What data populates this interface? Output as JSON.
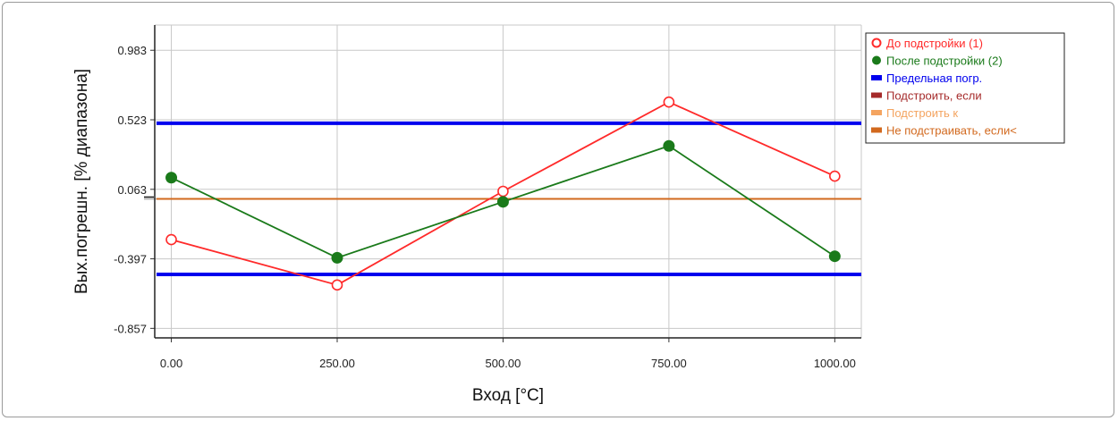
{
  "chart_data": {
    "type": "line",
    "xlabel": "Вход [°C]",
    "ylabel": "Вых.погрешн. [% диапазона]",
    "x": [
      0,
      250,
      500,
      750,
      1000
    ],
    "x_tick_labels": [
      "0.00",
      "250.00",
      "500.00",
      "750.00",
      "1000.00"
    ],
    "y_ticks": [
      0.983,
      0.523,
      0.063,
      -0.397,
      -0.857
    ],
    "y_tick_labels": [
      "0.983",
      "0.523",
      "0.063",
      "-0.397",
      "-0.857"
    ],
    "xlim": [
      -25,
      1040
    ],
    "ylim": [
      -0.92,
      1.15
    ],
    "grid": true,
    "legend_position": "right",
    "series": [
      {
        "name": "До подстройки (1)",
        "color": "#ff2a2a",
        "marker": "open-circle",
        "values": [
          -0.27,
          -0.57,
          0.05,
          0.64,
          0.15
        ]
      },
      {
        "name": "После подстройки (2)",
        "color": "#1a7a1a",
        "marker": "filled-circle",
        "values": [
          0.14,
          -0.39,
          -0.02,
          0.35,
          -0.38
        ]
      }
    ],
    "hlines": [
      {
        "name": "Предельная погр.",
        "color": "#0000ee",
        "values": [
          0.5,
          -0.5
        ],
        "width": 4
      },
      {
        "name": "Подстроить, если",
        "color": "#a52a2a",
        "values": [],
        "width": 3
      },
      {
        "name": "Подстроить к",
        "color": "#f4a460",
        "values": [],
        "width": 3
      },
      {
        "name": "Не подстраивать, если<",
        "color": "#d2691e",
        "values": [
          0.0
        ],
        "width": 2
      }
    ],
    "legend": [
      {
        "label": "До подстройки (1)",
        "color": "#ff2a2a",
        "symbol": "open-circle"
      },
      {
        "label": "После подстройки (2)",
        "color": "#1a7a1a",
        "symbol": "filled-circle"
      },
      {
        "label": "Предельная погр.",
        "color": "#0000ee",
        "symbol": "bar"
      },
      {
        "label": "Подстроить, если",
        "color": "#a52a2a",
        "symbol": "bar"
      },
      {
        "label": "Подстроить к",
        "color": "#f4a460",
        "symbol": "bar"
      },
      {
        "label": "Не подстраивать, если<",
        "color": "#d2691e",
        "symbol": "bar"
      }
    ]
  }
}
